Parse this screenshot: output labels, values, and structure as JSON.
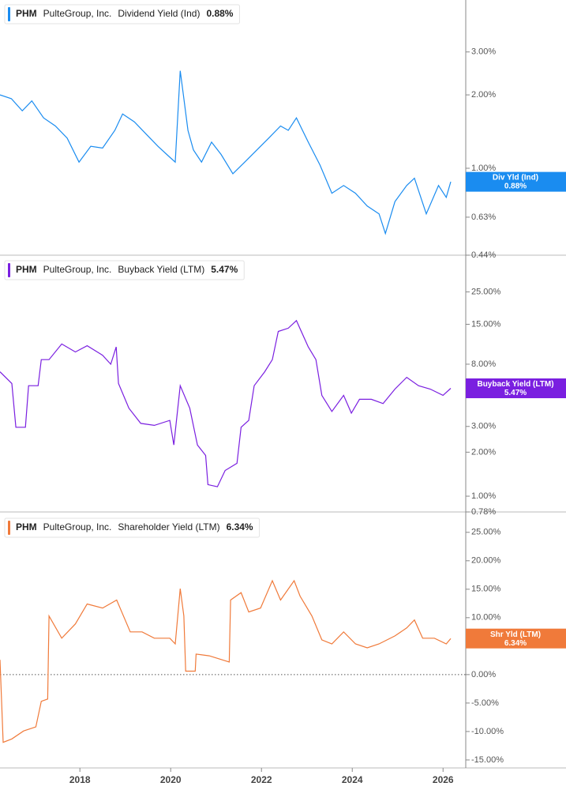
{
  "chart_data": [
    {
      "type": "line",
      "ticker": "PHM",
      "company": "PulteGroup, Inc.",
      "log_scale": true,
      "x": [
        2016.24,
        2016.49,
        2016.73,
        2016.94,
        2017.2,
        2017.46,
        2017.72,
        2017.98,
        2018.24,
        2018.5,
        2018.77,
        2018.94,
        2019.2,
        2019.46,
        2019.72,
        2019.98,
        2020.1,
        2020.21,
        2020.28,
        2020.38,
        2020.5,
        2020.68,
        2020.9,
        2021.11,
        2021.37,
        2021.63,
        2021.9,
        2022.16,
        2022.42,
        2022.59,
        2022.77,
        2023.03,
        2023.29,
        2023.55,
        2023.81,
        2024.07,
        2024.33,
        2024.59,
        2024.73,
        2024.94,
        2025.2,
        2025.37,
        2025.63,
        2025.9,
        2026.07,
        2026.17
      ],
      "xlim": [
        2016.24,
        2026.5
      ],
      "ylim": [
        0.44,
        4.9
      ],
      "yticks": [
        {
          "value": 0.44,
          "label": "0.44%"
        },
        {
          "value": 0.63,
          "label": "0.63%"
        },
        {
          "value": 1,
          "label": "1.00%"
        },
        {
          "value": 2,
          "label": "2.00%"
        },
        {
          "value": 3,
          "label": "3.00%"
        }
      ],
      "series": [
        {
          "name": "Dividend Yield (Ind)",
          "short_name": "Div Yld (Ind)",
          "color": "#1a8cf0",
          "values": [
            2.0,
            1.93,
            1.72,
            1.89,
            1.61,
            1.49,
            1.33,
            1.06,
            1.23,
            1.21,
            1.43,
            1.67,
            1.55,
            1.38,
            1.23,
            1.11,
            1.06,
            2.51,
            2.0,
            1.43,
            1.19,
            1.06,
            1.28,
            1.14,
            0.95,
            1.06,
            1.19,
            1.33,
            1.49,
            1.43,
            1.61,
            1.28,
            1.03,
            0.79,
            0.85,
            0.79,
            0.7,
            0.65,
            0.54,
            0.73,
            0.85,
            0.91,
            0.65,
            0.85,
            0.76,
            0.88
          ]
        }
      ],
      "current": {
        "value": 0.88,
        "label": "0.88%"
      }
    },
    {
      "type": "line",
      "ticker": "PHM",
      "company": "PulteGroup, Inc.",
      "log_scale": true,
      "x": [
        2016.24,
        2016.5,
        2016.59,
        2016.8,
        2016.87,
        2017.08,
        2017.15,
        2017.32,
        2017.6,
        2017.9,
        2018.16,
        2018.5,
        2018.68,
        2018.8,
        2018.85,
        2019.08,
        2019.34,
        2019.64,
        2019.98,
        2020.07,
        2020.21,
        2020.42,
        2020.59,
        2020.77,
        2020.82,
        2021.03,
        2021.2,
        2021.46,
        2021.55,
        2021.72,
        2021.84,
        2022.07,
        2022.24,
        2022.37,
        2022.59,
        2022.77,
        2023.03,
        2023.2,
        2023.33,
        2023.55,
        2023.81,
        2023.98,
        2024.16,
        2024.42,
        2024.68,
        2024.94,
        2025.2,
        2025.46,
        2025.72,
        2026.0,
        2026.17
      ],
      "xlim": [
        2016.24,
        2026.5
      ],
      "ylim": [
        0.78,
        44
      ],
      "yticks": [
        {
          "value": 0.78,
          "label": "0.78%"
        },
        {
          "value": 1,
          "label": "1.00%"
        },
        {
          "value": 2,
          "label": "2.00%"
        },
        {
          "value": 3,
          "label": "3.00%"
        },
        {
          "value": 8,
          "label": "8.00%"
        },
        {
          "value": 15,
          "label": "15.00%"
        },
        {
          "value": 25,
          "label": "25.00%"
        }
      ],
      "series": [
        {
          "name": "Buyback Yield (LTM)",
          "short_name": "Buyback Yield (LTM)",
          "color": "#7a1fe0",
          "values": [
            7.1,
            5.9,
            2.96,
            2.96,
            5.7,
            5.7,
            8.6,
            8.6,
            11.0,
            9.7,
            10.7,
            9.2,
            8.0,
            10.5,
            5.9,
            4.0,
            3.15,
            3.05,
            3.3,
            2.24,
            5.7,
            4.0,
            2.24,
            1.9,
            1.2,
            1.16,
            1.5,
            1.68,
            2.96,
            3.3,
            5.7,
            7.1,
            8.6,
            13.4,
            14.1,
            15.9,
            10.5,
            8.6,
            4.9,
            3.8,
            4.9,
            3.7,
            4.6,
            4.6,
            4.3,
            5.4,
            6.5,
            5.7,
            5.4,
            4.9,
            5.47
          ]
        }
      ],
      "current": {
        "value": 5.47,
        "label": "5.47%"
      }
    },
    {
      "type": "line",
      "ticker": "PHM",
      "company": "PulteGroup, Inc.",
      "log_scale": false,
      "zero_line": true,
      "x": [
        2016.24,
        2016.31,
        2016.5,
        2016.76,
        2017.03,
        2017.15,
        2017.29,
        2017.32,
        2017.6,
        2017.9,
        2018.16,
        2018.5,
        2018.81,
        2019.11,
        2019.37,
        2019.64,
        2019.98,
        2020.1,
        2020.21,
        2020.29,
        2020.33,
        2020.54,
        2020.56,
        2020.85,
        2021.29,
        2021.32,
        2021.55,
        2021.72,
        2021.98,
        2022.24,
        2022.42,
        2022.72,
        2022.85,
        2023.11,
        2023.33,
        2023.55,
        2023.81,
        2024.07,
        2024.33,
        2024.59,
        2024.94,
        2025.2,
        2025.37,
        2025.55,
        2025.81,
        2026.07,
        2026.17
      ],
      "xlim": [
        2016.24,
        2026.5
      ],
      "xticks": [
        2018,
        2020,
        2022,
        2024,
        2026
      ],
      "ylim": [
        -16.4,
        28.3
      ],
      "yticks": [
        {
          "value": -15,
          "label": "-15.00%"
        },
        {
          "value": -10,
          "label": "-10.00%"
        },
        {
          "value": -5,
          "label": "-5.00%"
        },
        {
          "value": 0,
          "label": "0.00%"
        },
        {
          "value": 5,
          "label": "5.00%"
        },
        {
          "value": 10,
          "label": "10.00%"
        },
        {
          "value": 15,
          "label": "15.00%"
        },
        {
          "value": 20,
          "label": "20.00%"
        },
        {
          "value": 25,
          "label": "25.00%"
        }
      ],
      "series": [
        {
          "name": "Shareholder Yield (LTM)",
          "short_name": "Shr Yld (LTM)",
          "color": "#f07a3a",
          "values": [
            2.6,
            -11.9,
            -11.3,
            -9.9,
            -9.2,
            -4.7,
            -4.3,
            10.3,
            6.4,
            8.9,
            12.4,
            11.7,
            13.1,
            7.5,
            7.5,
            6.4,
            6.4,
            5.4,
            15.1,
            10.3,
            0.6,
            0.6,
            3.6,
            3.3,
            2.2,
            13.1,
            14.4,
            11.0,
            11.7,
            16.5,
            13.1,
            16.5,
            13.8,
            10.3,
            6.1,
            5.4,
            7.5,
            5.4,
            4.7,
            5.4,
            6.8,
            8.2,
            9.6,
            6.4,
            6.4,
            5.4,
            6.34
          ]
        }
      ],
      "current": {
        "value": 6.34,
        "label": "6.34%"
      }
    }
  ]
}
